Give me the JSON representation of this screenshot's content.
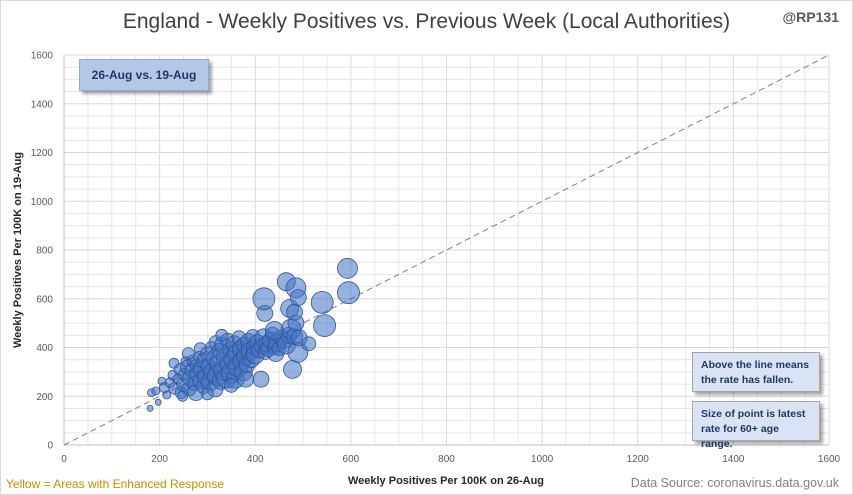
{
  "header": {
    "title": "England - Weekly Positives vs. Previous Week (Local Authorities)",
    "handle": "@RP131"
  },
  "annotations": {
    "period": "26-Aug vs. 19-Aug",
    "note_line": "Above the line means the rate has fallen.",
    "note_size": "Size of point is latest rate for 60+ age range."
  },
  "footer": {
    "legend_note": "Yellow = Areas with Enhanced Response",
    "source": "Data Source: coronavirus.data.gov.uk"
  },
  "colors": {
    "point_fill": "#4472c4",
    "point_stroke": "#2f5597",
    "diagonal": "#7f7f7f",
    "grid": "#e6e6e6",
    "highlight": "#ffc000"
  },
  "chart_data": {
    "type": "scatter",
    "title": "England - Weekly Positives vs. Previous Week (Local Authorities)",
    "xlabel": "Weekly Positives Per 100K on 26-Aug",
    "ylabel": "Weekly Positives Per 100K on 19-Aug",
    "xlim": [
      0,
      1600
    ],
    "ylim": [
      0,
      1600
    ],
    "xticks": [
      0,
      200,
      400,
      600,
      800,
      1000,
      1200,
      1400,
      1600
    ],
    "yticks": [
      0,
      200,
      400,
      600,
      800,
      1000,
      1200,
      1400,
      1600
    ],
    "grid": true,
    "reference_line": "y = x (dashed)",
    "point_size_meaning": "latest rate for 60+ age range",
    "points": [
      {
        "x": 180,
        "y": 150,
        "s": 3
      },
      {
        "x": 183,
        "y": 215,
        "s": 4
      },
      {
        "x": 192,
        "y": 222,
        "s": 4
      },
      {
        "x": 197,
        "y": 175,
        "s": 3
      },
      {
        "x": 205,
        "y": 262,
        "s": 4
      },
      {
        "x": 210,
        "y": 236,
        "s": 5
      },
      {
        "x": 215,
        "y": 205,
        "s": 4
      },
      {
        "x": 222,
        "y": 255,
        "s": 5
      },
      {
        "x": 228,
        "y": 286,
        "s": 5
      },
      {
        "x": 232,
        "y": 232,
        "s": 6
      },
      {
        "x": 238,
        "y": 270,
        "s": 5
      },
      {
        "x": 243,
        "y": 310,
        "s": 6
      },
      {
        "x": 245,
        "y": 215,
        "s": 6
      },
      {
        "x": 250,
        "y": 250,
        "s": 7
      },
      {
        "x": 252,
        "y": 290,
        "s": 6
      },
      {
        "x": 255,
        "y": 342,
        "s": 5
      },
      {
        "x": 258,
        "y": 320,
        "s": 7
      },
      {
        "x": 262,
        "y": 230,
        "s": 7
      },
      {
        "x": 265,
        "y": 272,
        "s": 8
      },
      {
        "x": 268,
        "y": 305,
        "s": 7
      },
      {
        "x": 270,
        "y": 345,
        "s": 6
      },
      {
        "x": 273,
        "y": 252,
        "s": 7
      },
      {
        "x": 276,
        "y": 215,
        "s": 8
      },
      {
        "x": 278,
        "y": 325,
        "s": 7
      },
      {
        "x": 280,
        "y": 290,
        "s": 8
      },
      {
        "x": 283,
        "y": 360,
        "s": 6
      },
      {
        "x": 286,
        "y": 265,
        "s": 8
      },
      {
        "x": 289,
        "y": 310,
        "s": 9
      },
      {
        "x": 292,
        "y": 240,
        "s": 7
      },
      {
        "x": 295,
        "y": 345,
        "s": 8
      },
      {
        "x": 298,
        "y": 280,
        "s": 9
      },
      {
        "x": 300,
        "y": 375,
        "s": 7
      },
      {
        "x": 303,
        "y": 320,
        "s": 8
      },
      {
        "x": 306,
        "y": 260,
        "s": 9
      },
      {
        "x": 308,
        "y": 400,
        "s": 6
      },
      {
        "x": 311,
        "y": 300,
        "s": 9
      },
      {
        "x": 314,
        "y": 355,
        "s": 8
      },
      {
        "x": 316,
        "y": 230,
        "s": 8
      },
      {
        "x": 318,
        "y": 420,
        "s": 7
      },
      {
        "x": 321,
        "y": 285,
        "s": 10
      },
      {
        "x": 324,
        "y": 335,
        "s": 9
      },
      {
        "x": 326,
        "y": 385,
        "s": 8
      },
      {
        "x": 329,
        "y": 265,
        "s": 9
      },
      {
        "x": 332,
        "y": 410,
        "s": 8
      },
      {
        "x": 334,
        "y": 305,
        "s": 10
      },
      {
        "x": 337,
        "y": 360,
        "s": 9
      },
      {
        "x": 340,
        "y": 275,
        "s": 10
      },
      {
        "x": 342,
        "y": 430,
        "s": 7
      },
      {
        "x": 345,
        "y": 330,
        "s": 9
      },
      {
        "x": 348,
        "y": 390,
        "s": 8
      },
      {
        "x": 350,
        "y": 295,
        "s": 10
      },
      {
        "x": 353,
        "y": 350,
        "s": 9
      },
      {
        "x": 356,
        "y": 415,
        "s": 8
      },
      {
        "x": 358,
        "y": 270,
        "s": 9
      },
      {
        "x": 361,
        "y": 375,
        "s": 9
      },
      {
        "x": 364,
        "y": 320,
        "s": 10
      },
      {
        "x": 366,
        "y": 440,
        "s": 7
      },
      {
        "x": 369,
        "y": 395,
        "s": 8
      },
      {
        "x": 372,
        "y": 345,
        "s": 9
      },
      {
        "x": 375,
        "y": 300,
        "s": 9
      },
      {
        "x": 378,
        "y": 410,
        "s": 8
      },
      {
        "x": 380,
        "y": 365,
        "s": 9
      },
      {
        "x": 383,
        "y": 330,
        "s": 8
      },
      {
        "x": 386,
        "y": 425,
        "s": 8
      },
      {
        "x": 389,
        "y": 385,
        "s": 9
      },
      {
        "x": 392,
        "y": 350,
        "s": 8
      },
      {
        "x": 395,
        "y": 445,
        "s": 7
      },
      {
        "x": 398,
        "y": 400,
        "s": 8
      },
      {
        "x": 400,
        "y": 370,
        "s": 9
      },
      {
        "x": 404,
        "y": 420,
        "s": 8
      },
      {
        "x": 408,
        "y": 390,
        "s": 8
      },
      {
        "x": 412,
        "y": 270,
        "s": 8
      },
      {
        "x": 415,
        "y": 405,
        "s": 8
      },
      {
        "x": 418,
        "y": 440,
        "s": 9
      },
      {
        "x": 421,
        "y": 380,
        "s": 7
      },
      {
        "x": 425,
        "y": 415,
        "s": 8
      },
      {
        "x": 428,
        "y": 395,
        "s": 8
      },
      {
        "x": 432,
        "y": 430,
        "s": 8
      },
      {
        "x": 436,
        "y": 455,
        "s": 7
      },
      {
        "x": 440,
        "y": 400,
        "s": 7
      },
      {
        "x": 443,
        "y": 375,
        "s": 8
      },
      {
        "x": 447,
        "y": 420,
        "s": 9
      },
      {
        "x": 450,
        "y": 395,
        "s": 7
      },
      {
        "x": 455,
        "y": 440,
        "s": 8
      },
      {
        "x": 460,
        "y": 430,
        "s": 8
      },
      {
        "x": 465,
        "y": 410,
        "s": 9
      },
      {
        "x": 470,
        "y": 450,
        "s": 8
      },
      {
        "x": 475,
        "y": 475,
        "s": 10
      },
      {
        "x": 478,
        "y": 310,
        "s": 9
      },
      {
        "x": 482,
        "y": 445,
        "s": 8
      },
      {
        "x": 485,
        "y": 500,
        "s": 8
      },
      {
        "x": 489,
        "y": 380,
        "s": 10
      },
      {
        "x": 492,
        "y": 440,
        "s": 8
      },
      {
        "x": 420,
        "y": 540,
        "s": 8
      },
      {
        "x": 418,
        "y": 600,
        "s": 11
      },
      {
        "x": 440,
        "y": 470,
        "s": 9
      },
      {
        "x": 465,
        "y": 670,
        "s": 9
      },
      {
        "x": 472,
        "y": 560,
        "s": 9
      },
      {
        "x": 482,
        "y": 545,
        "s": 8
      },
      {
        "x": 485,
        "y": 645,
        "s": 10
      },
      {
        "x": 490,
        "y": 605,
        "s": 8
      },
      {
        "x": 540,
        "y": 585,
        "s": 11
      },
      {
        "x": 545,
        "y": 490,
        "s": 11
      },
      {
        "x": 593,
        "y": 725,
        "s": 10
      },
      {
        "x": 595,
        "y": 625,
        "s": 11
      },
      {
        "x": 512,
        "y": 415,
        "s": 7
      },
      {
        "x": 230,
        "y": 335,
        "s": 5
      },
      {
        "x": 260,
        "y": 375,
        "s": 6
      },
      {
        "x": 248,
        "y": 200,
        "s": 5
      },
      {
        "x": 330,
        "y": 450,
        "s": 6
      },
      {
        "x": 300,
        "y": 210,
        "s": 6
      },
      {
        "x": 350,
        "y": 245,
        "s": 7
      },
      {
        "x": 380,
        "y": 270,
        "s": 8
      },
      {
        "x": 285,
        "y": 395,
        "s": 6
      }
    ]
  }
}
